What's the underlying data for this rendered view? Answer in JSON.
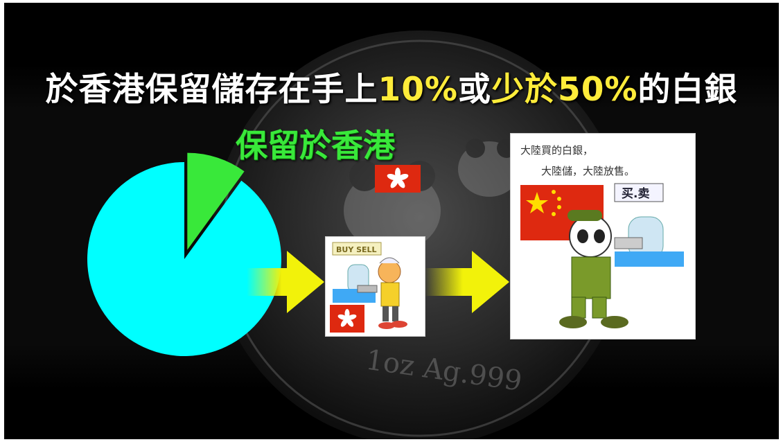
{
  "title": {
    "part1": "於香港保留儲存在手上",
    "pct1": "10%",
    "mid": "或",
    "part2": "少於50%",
    "part3": "的白銀"
  },
  "keep_label": "保留於香港",
  "pie": {
    "type": "pie",
    "values": [
      10,
      90
    ]
  },
  "shop_sign": "BUY SELL",
  "mainland_caption": {
    "line1": "大陸買的白銀，",
    "line2": "大陸儲，大陸放售。"
  },
  "mainland_sign": "买.卖",
  "coin_text": "1oz Ag.999",
  "colors": {
    "pie_main": "#00ffff",
    "pie_slice": "#39e83a",
    "highlight": "#ffec3a",
    "arrow": "#f2f20a",
    "hk_flag": "#de2910",
    "cn_flag": "#de2910"
  }
}
